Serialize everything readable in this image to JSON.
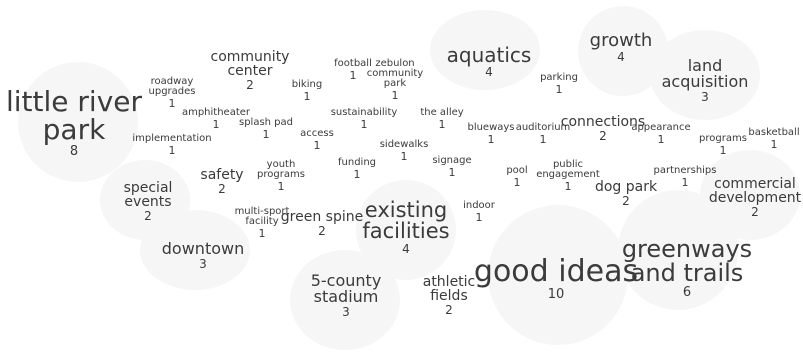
{
  "terms": [
    {
      "word": "little river\npark",
      "count": "8"
    },
    {
      "word": "good ideas",
      "count": "10"
    },
    {
      "word": "greenways\nand trails",
      "count": "6"
    },
    {
      "word": "existing\nfacilities",
      "count": "4"
    },
    {
      "word": "aquatics",
      "count": "4"
    },
    {
      "word": "growth",
      "count": "4"
    },
    {
      "word": "land\nacquisition",
      "count": "3"
    },
    {
      "word": "downtown",
      "count": "3"
    },
    {
      "word": "5-county\nstadium",
      "count": "3"
    },
    {
      "word": "community\ncenter",
      "count": "2"
    },
    {
      "word": "special\nevents",
      "count": "2"
    },
    {
      "word": "safety",
      "count": "2"
    },
    {
      "word": "green spine",
      "count": "2"
    },
    {
      "word": "connections",
      "count": "2"
    },
    {
      "word": "dog park",
      "count": "2"
    },
    {
      "word": "commercial\ndevelopment",
      "count": "2"
    },
    {
      "word": "athletic\nfields",
      "count": "2"
    },
    {
      "word": "roadway\nupgrades",
      "count": "1"
    },
    {
      "word": "implementation",
      "count": "1"
    },
    {
      "word": "amphitheater",
      "count": "1"
    },
    {
      "word": "biking",
      "count": "1"
    },
    {
      "word": "football",
      "count": "1"
    },
    {
      "word": "zebulon\ncommunity\npark",
      "count": "1"
    },
    {
      "word": "splash pad",
      "count": "1"
    },
    {
      "word": "access",
      "count": "1"
    },
    {
      "word": "sustainability",
      "count": "1"
    },
    {
      "word": "the alley",
      "count": "1"
    },
    {
      "word": "sidewalks",
      "count": "1"
    },
    {
      "word": "parking",
      "count": "1"
    },
    {
      "word": "blueways",
      "count": "1"
    },
    {
      "word": "auditorium",
      "count": "1"
    },
    {
      "word": "appearance",
      "count": "1"
    },
    {
      "word": "programs",
      "count": "1"
    },
    {
      "word": "basketball",
      "count": "1"
    },
    {
      "word": "youth\nprograms",
      "count": "1"
    },
    {
      "word": "funding",
      "count": "1"
    },
    {
      "word": "signage",
      "count": "1"
    },
    {
      "word": "pool",
      "count": "1"
    },
    {
      "word": "public\nengagement",
      "count": "1"
    },
    {
      "word": "partnerships",
      "count": "1"
    },
    {
      "word": "indoor",
      "count": "1"
    },
    {
      "word": "multi-sport\nfacility",
      "count": "1"
    }
  ]
}
